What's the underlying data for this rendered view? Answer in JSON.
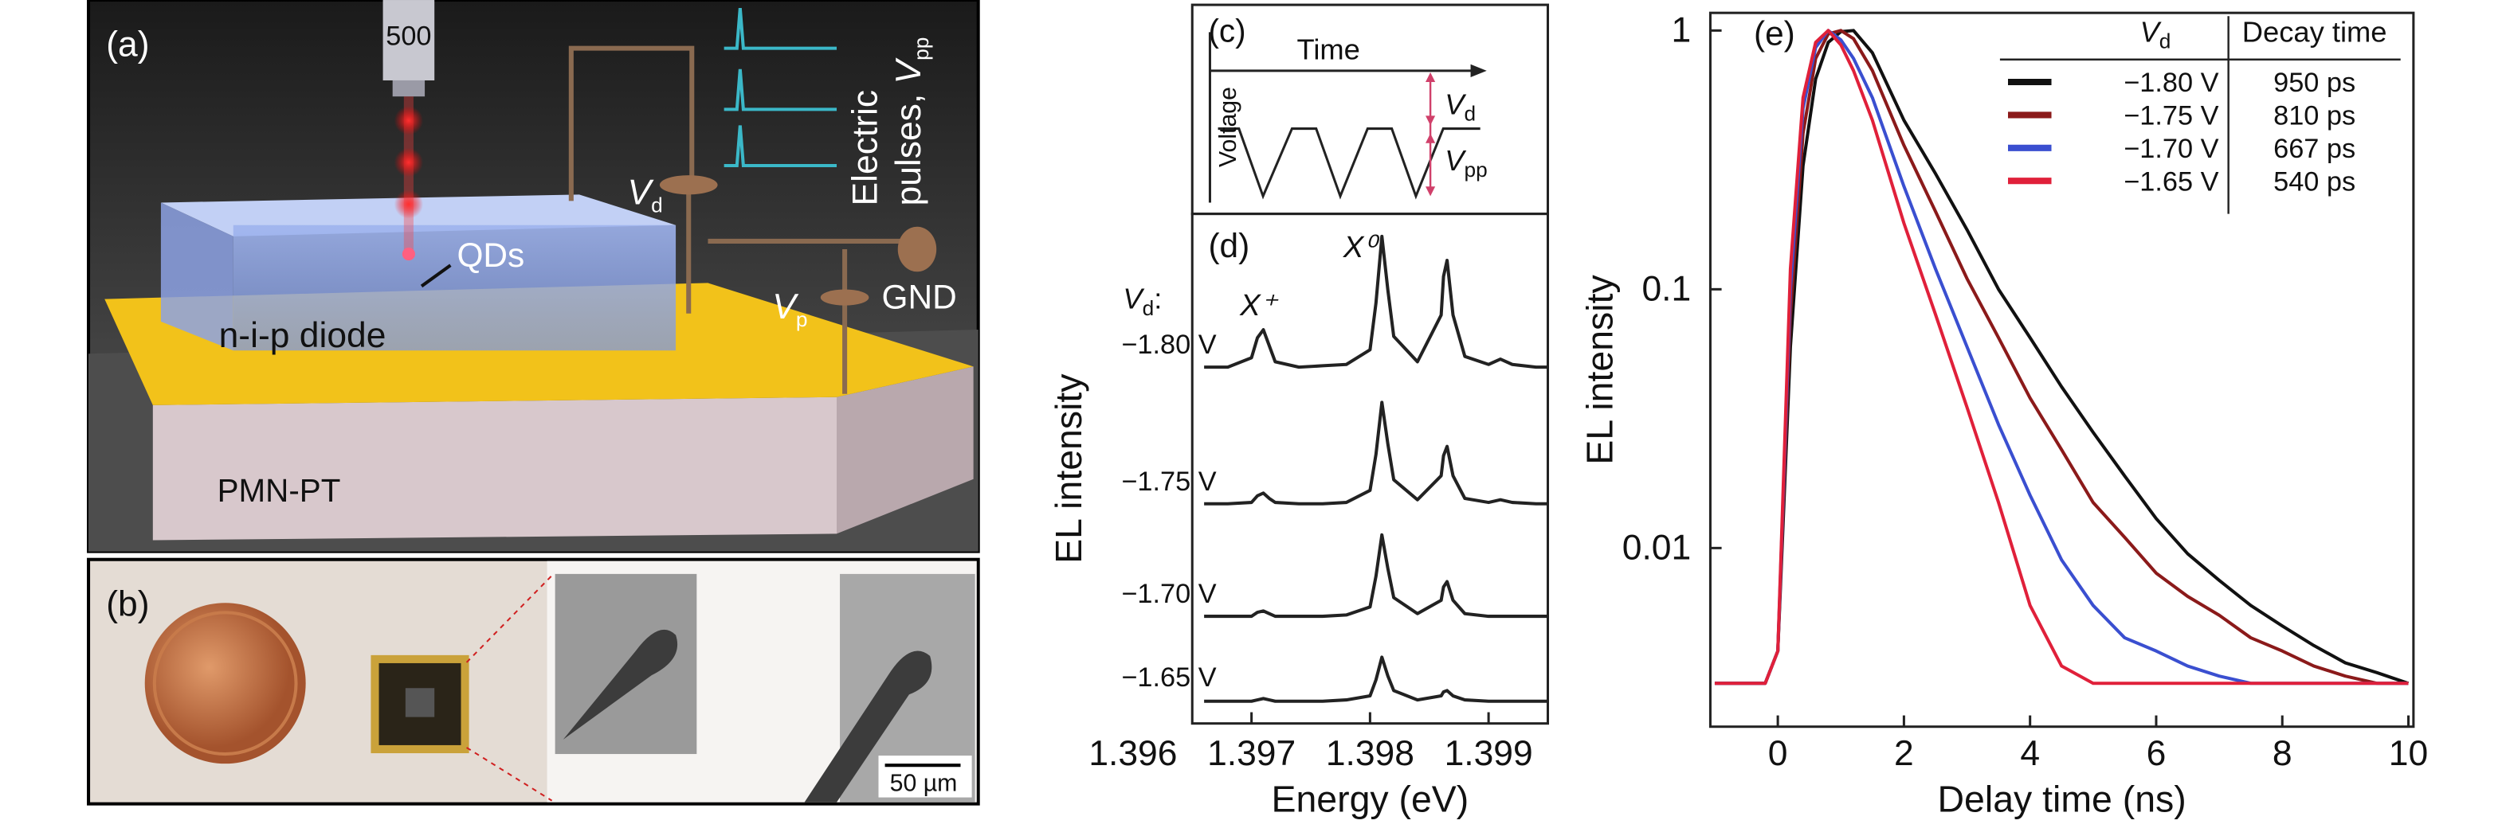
{
  "panel_a": {
    "label": "(a)",
    "objective": "500",
    "qds": "QDs",
    "diode": "n-i-p diode",
    "substrate": "PMN-PT",
    "vd": {
      "main": "V",
      "sub": "d"
    },
    "vp": {
      "main": "V",
      "sub": "p"
    },
    "gnd": "GND",
    "pulses": {
      "line1": "Electric",
      "line2": "pulses, ",
      "main": "V",
      "sub": "pp"
    }
  },
  "panel_b": {
    "label": "(b)",
    "scale_bar": "50 µm"
  },
  "panel_c": {
    "label": "(c)",
    "time": "Time",
    "voltage": "Voltage",
    "vd": {
      "main": "V",
      "sub": "d"
    },
    "vpp": {
      "main": "V",
      "sub": "pp"
    }
  },
  "chart_data": [
    {
      "type": "line",
      "label": "(d)",
      "xlabel": "Energy (eV)",
      "ylabel": "EL intensity",
      "series_title": {
        "main": "V",
        "sub": "d",
        "after": ":"
      },
      "annotations": [
        "X⁺",
        "X⁰"
      ],
      "xlim": [
        1.3965,
        1.3995
      ],
      "xticks": [
        1.396,
        1.397,
        1.398,
        1.399
      ],
      "x": [
        1.3966,
        1.3968,
        1.397,
        1.39705,
        1.3971,
        1.39715,
        1.3972,
        1.3974,
        1.3976,
        1.3978,
        1.398,
        1.39805,
        1.3981,
        1.39815,
        1.3982,
        1.3984,
        1.3986,
        1.39862,
        1.39865,
        1.3987,
        1.3988,
        1.399,
        1.3991,
        1.3992,
        1.3994,
        1.3995
      ],
      "series": [
        {
          "name": "−1.80 V",
          "color": "#222222",
          "values": [
            0.02,
            0.02,
            0.09,
            0.24,
            0.3,
            0.18,
            0.06,
            0.02,
            0.03,
            0.04,
            0.15,
            0.5,
            1,
            0.6,
            0.25,
            0.06,
            0.41,
            0.7,
            0.82,
            0.41,
            0.1,
            0.04,
            0.08,
            0.04,
            0.02,
            0.02
          ]
        },
        {
          "name": "−1.75 V",
          "color": "#222222",
          "values": [
            0.02,
            0.02,
            0.03,
            0.08,
            0.1,
            0.06,
            0.03,
            0.02,
            0.02,
            0.03,
            0.12,
            0.39,
            0.78,
            0.47,
            0.2,
            0.05,
            0.23,
            0.38,
            0.45,
            0.23,
            0.06,
            0.03,
            0.05,
            0.03,
            0.02,
            0.02
          ]
        },
        {
          "name": "−1.70 V",
          "color": "#222222",
          "values": [
            0.02,
            0.02,
            0.02,
            0.05,
            0.06,
            0.04,
            0.02,
            0.02,
            0.02,
            0.03,
            0.09,
            0.32,
            0.63,
            0.38,
            0.16,
            0.04,
            0.14,
            0.24,
            0.28,
            0.14,
            0.04,
            0.02,
            0.02,
            0.02,
            0.02,
            0.02
          ]
        },
        {
          "name": "−1.65 V",
          "color": "#222222",
          "values": [
            0.01,
            0.01,
            0.01,
            0.02,
            0.03,
            0.02,
            0.01,
            0.01,
            0.01,
            0.02,
            0.05,
            0.17,
            0.34,
            0.2,
            0.09,
            0.02,
            0.05,
            0.08,
            0.09,
            0.05,
            0.02,
            0.01,
            0.01,
            0.01,
            0.01,
            0.01
          ]
        }
      ]
    },
    {
      "type": "line",
      "label": "(e)",
      "xlabel": "Delay time (ns)",
      "ylabel": "EL intensity",
      "log_y": true,
      "legend_header": {
        "main": "V",
        "sub": "d",
        "column": "Decay time"
      },
      "xlim": [
        -1.07,
        10.08
      ],
      "xticks": [
        0,
        2,
        4,
        6,
        8,
        10
      ],
      "ylim": [
        0.00204,
        1.17
      ],
      "yticks": [
        1,
        0.1,
        0.01
      ],
      "x": [
        -1,
        -0.2,
        0,
        0.2,
        0.4,
        0.6,
        0.8,
        1.0,
        1.2,
        1.5,
        2,
        2.5,
        3,
        3.5,
        4,
        4.5,
        5,
        5.5,
        6,
        6.5,
        7,
        7.5,
        8,
        8.5,
        9,
        9.5,
        10
      ],
      "series": [
        {
          "name": "−1.80 V",
          "decay_time": "950 ps",
          "color": "#111111",
          "values": [
            0.003,
            0.003,
            0.004,
            0.06,
            0.3,
            0.65,
            0.9,
            0.99,
            1,
            0.82,
            0.45,
            0.28,
            0.17,
            0.1,
            0.065,
            0.042,
            0.028,
            0.019,
            0.013,
            0.0095,
            0.0075,
            0.006,
            0.005,
            0.0042,
            0.0036,
            0.0033,
            0.003
          ]
        },
        {
          "name": "−1.75 V",
          "decay_time": "810 ps",
          "color": "#8b1a1a",
          "values": [
            0.003,
            0.003,
            0.004,
            0.08,
            0.4,
            0.78,
            0.97,
            1,
            0.93,
            0.7,
            0.36,
            0.2,
            0.11,
            0.065,
            0.038,
            0.024,
            0.015,
            0.011,
            0.008,
            0.0065,
            0.0055,
            0.0045,
            0.004,
            0.0035,
            0.0032,
            0.003,
            0.003
          ]
        },
        {
          "name": "−1.70 V",
          "decay_time": "667 ps",
          "color": "#3a4fd0",
          "values": [
            0.003,
            0.003,
            0.004,
            0.1,
            0.5,
            0.86,
            1,
            0.92,
            0.78,
            0.55,
            0.25,
            0.12,
            0.06,
            0.03,
            0.016,
            0.009,
            0.006,
            0.0045,
            0.004,
            0.0035,
            0.0032,
            0.003,
            0.003,
            0.003,
            0.003,
            0.003,
            0.003
          ]
        },
        {
          "name": "−1.65 V",
          "decay_time": "540 ps",
          "color": "#e0203a",
          "values": [
            0.003,
            0.003,
            0.004,
            0.12,
            0.55,
            0.9,
            1,
            0.88,
            0.7,
            0.45,
            0.18,
            0.08,
            0.035,
            0.015,
            0.006,
            0.0035,
            0.003,
            0.003,
            0.003,
            0.003,
            0.003,
            0.003,
            0.003,
            0.003,
            0.003,
            0.003,
            0.003
          ]
        }
      ]
    }
  ]
}
